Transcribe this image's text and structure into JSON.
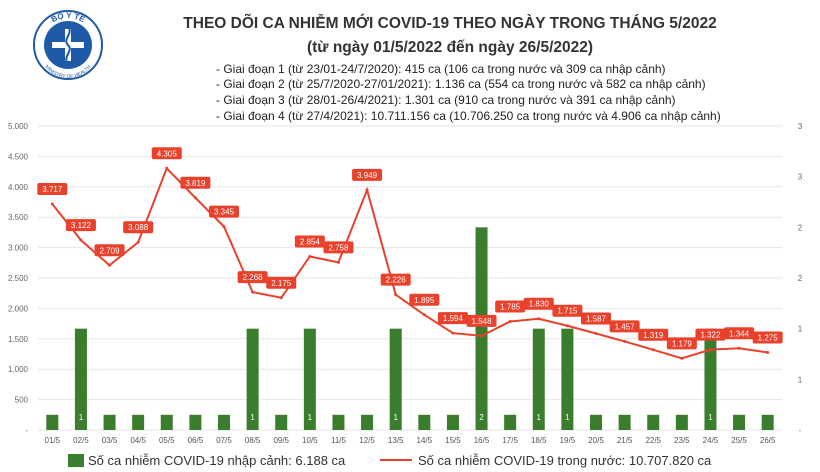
{
  "header": {
    "title": "THEO DÕI CA NHIỄM MỚI COVID-19 THEO NGÀY TRONG THÁNG 5/2022",
    "subtitle": "(từ ngày 01/5/2022 đến ngày 26/5/2022)",
    "notes": [
      "- Giai đoạn 1 (từ 23/01-24/7/2020): 415 ca (106 ca trong nước và 309 ca nhập cảnh)",
      "- Giai đoạn 2 (từ 25/7/2020-27/01/2021): 1.136 ca (554 ca trong nước và 582 ca nhập cảnh)",
      "- Giai đoạn 3 (từ 28/01-26/4/2021): 1.301 ca (910 ca trong nước và 391 ca nhập cảnh)",
      "- Giai đoạn 4 (từ 27/4/2021): 10.711.156 ca (10.706.250 ca trong nước và 4.906 ca nhập cảnh)"
    ]
  },
  "logo": {
    "top_text": "BỘ Y TẾ",
    "bottom_text": "MINISTRY OF HEALTH"
  },
  "colors": {
    "bar": "#3a7d2c",
    "line": "#e8412c",
    "label_bg": "#e8412c",
    "grid": "#e6e6e6"
  },
  "chart_data": {
    "type": "bar+line",
    "categories": [
      "01/5",
      "02/5",
      "03/5",
      "04/5",
      "05/5",
      "06/5",
      "07/5",
      "08/5",
      "09/5",
      "10/5",
      "11/5",
      "12/5",
      "13/5",
      "14/5",
      "15/5",
      "16/5",
      "17/5",
      "18/5",
      "19/5",
      "20/5",
      "21/5",
      "22/5",
      "23/5",
      "24/5",
      "25/5",
      "26/5"
    ],
    "left_axis": {
      "ticks": [
        "-",
        "500",
        "1.000",
        "1.500",
        "2.000",
        "2.500",
        "3.000",
        "3.500",
        "4.000",
        "4.500",
        "5.000"
      ],
      "ylim": [
        0,
        5000
      ]
    },
    "right_axis": {
      "ticks": [
        "-",
        "1",
        "1",
        "2",
        "2",
        "3",
        "3"
      ],
      "ylim": [
        0,
        3
      ]
    },
    "series": [
      {
        "name": "Số ca nhiễm COVID-19 nhập cảnh: 6.188 ca",
        "kind": "bar",
        "axis": "right",
        "values": [
          0,
          1,
          0,
          0,
          0,
          0,
          0,
          1,
          0,
          1,
          0,
          0,
          1,
          0,
          0,
          2,
          0,
          1,
          1,
          0,
          0,
          0,
          0,
          1,
          0,
          0
        ],
        "labels": [
          "",
          "1",
          "",
          "",
          "",
          "",
          "",
          "1",
          "",
          "1",
          "",
          "",
          "1",
          "",
          "",
          "2",
          "",
          "1",
          "1",
          "",
          "",
          "",
          "",
          "1",
          "",
          ""
        ]
      },
      {
        "name": "Số ca nhiễm COVID-19 trong nước: 10.707.820 ca",
        "kind": "line",
        "axis": "left",
        "values": [
          3717,
          3122,
          2709,
          3088,
          4305,
          3819,
          3345,
          2268,
          2175,
          2854,
          2758,
          3949,
          2226,
          1895,
          1594,
          1548,
          1785,
          1830,
          1715,
          1587,
          1457,
          1319,
          1179,
          1322,
          1344,
          1275
        ],
        "labels": [
          "3.717",
          "3.122",
          "2.709",
          "3.088",
          "4.305",
          "3.819",
          "3.345",
          "2.268",
          "2.175",
          "2.854",
          "2.758",
          "3.949",
          "2.226",
          "1.895",
          "1.594",
          "1.548",
          "1.785",
          "1.830",
          "1.715",
          "1.587",
          "1.457",
          "1.319",
          "1.179",
          "1.322",
          "1.344",
          "1.275"
        ]
      }
    ]
  }
}
